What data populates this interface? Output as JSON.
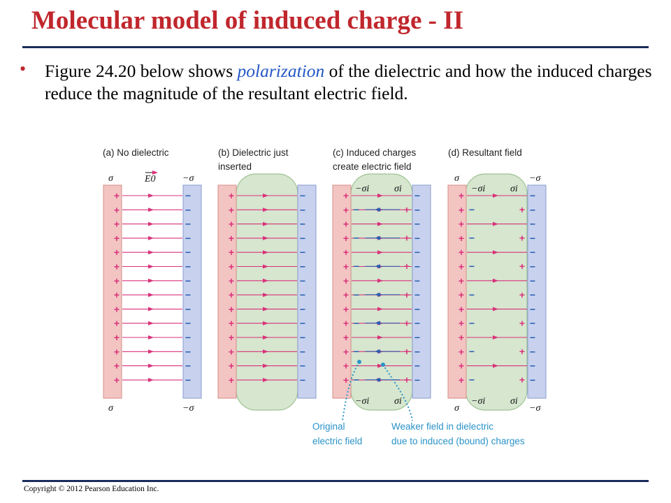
{
  "slide": {
    "title": "Molecular model of induced charge - II",
    "bullet_marker": "•",
    "bullet_prefix": "Figure 24.20 below shows ",
    "bullet_emphasis": "polarization",
    "bullet_suffix": " of the dielectric and how the induced charges reduce the magnitude of the resultant electric field.",
    "copyright": "Copyright © 2012 Pearson Education Inc."
  },
  "figure": {
    "panel_a": {
      "line1": "(a) No dielectric",
      "line2": ""
    },
    "panel_b": {
      "line1": "(b) Dielectric just",
      "line2": "inserted"
    },
    "panel_c": {
      "line1": "(c) Induced charges",
      "line2": "create electric field"
    },
    "panel_d": {
      "line1": "(d) Resultant field",
      "line2": ""
    },
    "sigma": "σ",
    "minus_sigma": "−σ",
    "minus_sigma_i": "−σi",
    "sigma_i": "σi",
    "field_label": "E0",
    "callout_left": {
      "line1": "Original",
      "line2": "electric field"
    },
    "callout_right": {
      "line1": "Weaker field in dielectric",
      "line2": "due to induced (bound) charges"
    },
    "colors": {
      "positive_plate": "#f2c4c2",
      "negative_plate": "#c8d2ee",
      "dielectric": "#d6e6cf",
      "field_line": "#d9327a",
      "callout": "#2a93c7"
    }
  }
}
